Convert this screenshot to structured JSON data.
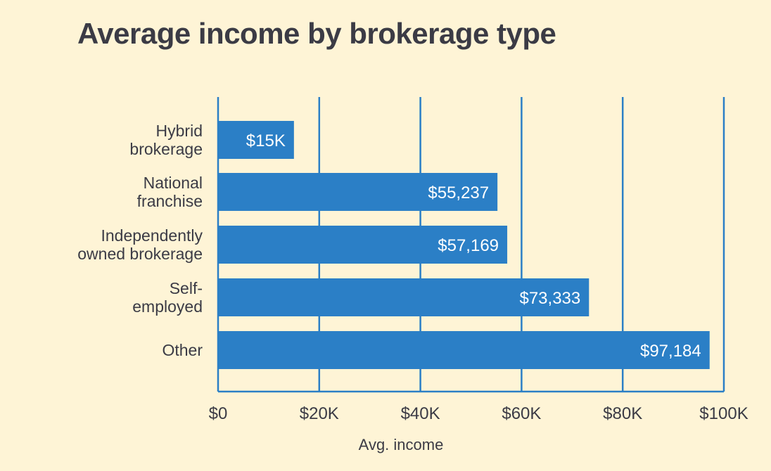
{
  "chart_data": {
    "type": "bar",
    "orientation": "horizontal",
    "title": "Average income by brokerage type",
    "xlabel": "Avg. income",
    "ylabel": "",
    "categories": [
      [
        "Hybrid",
        "brokerage"
      ],
      [
        "National",
        "franchise"
      ],
      [
        "Independently",
        "owned brokerage"
      ],
      [
        "Self-",
        "employed"
      ],
      [
        "Other"
      ]
    ],
    "values": [
      15000,
      55237,
      57169,
      73333,
      97184
    ],
    "value_labels": [
      "$15K",
      "$55,237",
      "$57,169",
      "$73,333",
      "$97,184"
    ],
    "xlim": [
      0,
      100000
    ],
    "x_ticks": [
      0,
      20000,
      40000,
      60000,
      80000,
      100000
    ],
    "x_tick_labels": [
      "$0",
      "$20K",
      "$40K",
      "$60K",
      "$80K",
      "$100K"
    ],
    "grid": true,
    "legend": "none",
    "colors": {
      "bar": "#2b7fc6",
      "grid": "#2b7fc6",
      "background": "#fef4d6",
      "text": "#3b3b45"
    }
  }
}
